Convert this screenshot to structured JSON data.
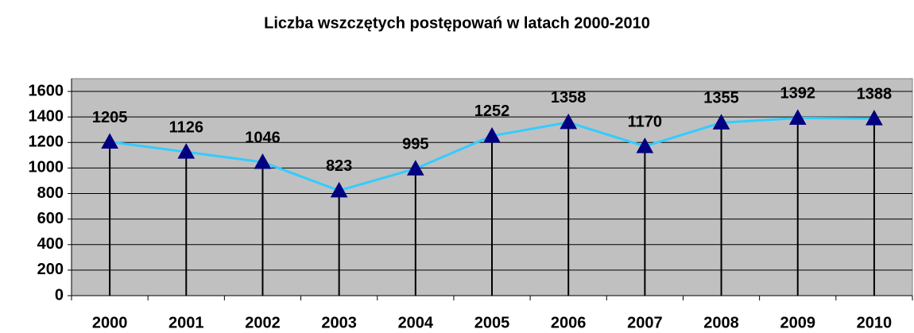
{
  "chart_data": {
    "type": "line",
    "title": "Liczba wszczętych postępowań w latach 2000-2010",
    "categories": [
      "2000",
      "2001",
      "2002",
      "2003",
      "2004",
      "2005",
      "2006",
      "2007",
      "2008",
      "2009",
      "2010"
    ],
    "values": [
      1205,
      1126,
      1046,
      823,
      995,
      1252,
      1358,
      1170,
      1355,
      1392,
      1388
    ],
    "color": "#33ccff",
    "marker_color": "#000080",
    "drop_lines": true,
    "ylim": [
      0,
      1700
    ],
    "yticks": [
      0,
      200,
      400,
      600,
      800,
      1000,
      1200,
      1400,
      1600
    ],
    "grid": true
  }
}
